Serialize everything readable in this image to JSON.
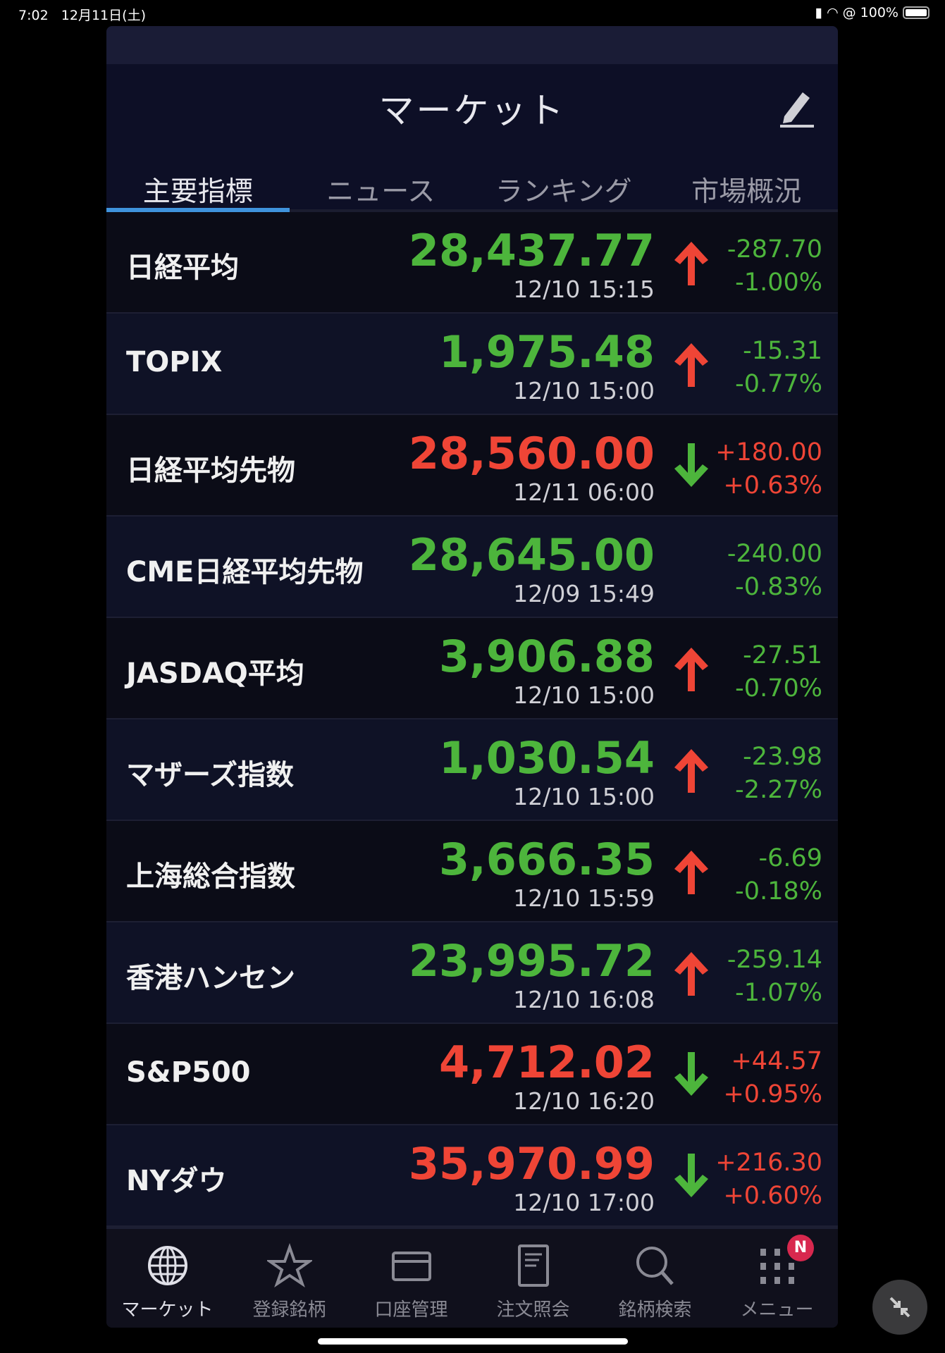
{
  "status": {
    "time": "7:02",
    "date": "12月11日(土)",
    "battery": "100%"
  },
  "header": {
    "title": "マーケット",
    "edit_icon": "pencil-icon"
  },
  "tabs": [
    {
      "label": "主要指標",
      "active": true
    },
    {
      "label": "ニュース"
    },
    {
      "label": "ランキング"
    },
    {
      "label": "市場概況"
    }
  ],
  "colors": {
    "down": "#4db53c",
    "up": "#ef4536",
    "accent": "#3f93dd",
    "badge": "#d8284e"
  },
  "indices": [
    {
      "name": "日経平均",
      "price": "28,437.77",
      "time": "12/10 15:15",
      "change": "-287.70",
      "pct": "-1.00%",
      "dir": "down",
      "arrow": "up"
    },
    {
      "name": "TOPIX",
      "price": "1,975.48",
      "time": "12/10 15:00",
      "change": "-15.31",
      "pct": "-0.77%",
      "dir": "down",
      "arrow": "up"
    },
    {
      "name": "日経平均先物",
      "price": "28,560.00",
      "time": "12/11 06:00",
      "change": "+180.00",
      "pct": "+0.63%",
      "dir": "up",
      "arrow": "down"
    },
    {
      "name": "CME日経平均先物",
      "price": "28,645.00",
      "time": "12/09 15:49",
      "change": "-240.00",
      "pct": "-0.83%",
      "dir": "down",
      "arrow": "none"
    },
    {
      "name": "JASDAQ平均",
      "price": "3,906.88",
      "time": "12/10 15:00",
      "change": "-27.51",
      "pct": "-0.70%",
      "dir": "down",
      "arrow": "up"
    },
    {
      "name": "マザーズ指数",
      "price": "1,030.54",
      "time": "12/10 15:00",
      "change": "-23.98",
      "pct": "-2.27%",
      "dir": "down",
      "arrow": "up"
    },
    {
      "name": "上海総合指数",
      "price": "3,666.35",
      "time": "12/10 15:59",
      "change": "-6.69",
      "pct": "-0.18%",
      "dir": "down",
      "arrow": "up"
    },
    {
      "name": "香港ハンセン",
      "price": "23,995.72",
      "time": "12/10 16:08",
      "change": "-259.14",
      "pct": "-1.07%",
      "dir": "down",
      "arrow": "up"
    },
    {
      "name": "S&P500",
      "price": "4,712.02",
      "time": "12/10 16:20",
      "change": "+44.57",
      "pct": "+0.95%",
      "dir": "up",
      "arrow": "down"
    },
    {
      "name": "NYダウ",
      "price": "35,970.99",
      "time": "12/10 17:00",
      "change": "+216.30",
      "pct": "+0.60%",
      "dir": "up",
      "arrow": "down"
    }
  ],
  "nav": [
    {
      "label": "マーケット",
      "icon": "globe-icon",
      "active": true
    },
    {
      "label": "登録銘柄",
      "icon": "star-icon"
    },
    {
      "label": "口座管理",
      "icon": "card-icon"
    },
    {
      "label": "注文照会",
      "icon": "document-icon"
    },
    {
      "label": "銘柄検索",
      "icon": "search-icon"
    },
    {
      "label": "メニュー",
      "icon": "grid-icon",
      "badge": "N"
    }
  ]
}
